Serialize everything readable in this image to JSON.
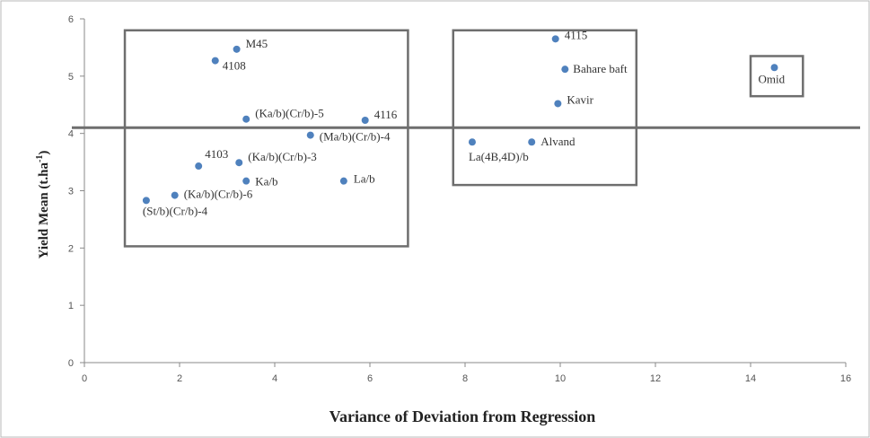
{
  "chart_data": {
    "type": "scatter",
    "xlabel": "Variance of Deviation from Regression",
    "ylabel_main": "Yield Mean (t.ha",
    "ylabel_sup": "-1",
    "ylabel_close": ")",
    "xlim": [
      0,
      16
    ],
    "ylim": [
      0,
      6
    ],
    "x_ticks": [
      "0",
      "2",
      "4",
      "6",
      "8",
      "10",
      "12",
      "14",
      "16"
    ],
    "y_ticks": [
      "0",
      "1",
      "2",
      "3",
      "4",
      "5",
      "6"
    ],
    "grid": false,
    "reference_line_y": 4.1,
    "points": [
      {
        "label": "M45",
        "x": 3.2,
        "y": 5.47
      },
      {
        "label": "4108",
        "x": 2.75,
        "y": 5.27
      },
      {
        "label": "(Ka/b)(Cr/b)-5",
        "x": 3.4,
        "y": 4.25
      },
      {
        "label": "4116",
        "x": 5.9,
        "y": 4.23
      },
      {
        "label": "(Ma/b)(Cr/b)-4",
        "x": 4.75,
        "y": 3.97
      },
      {
        "label": "4103",
        "x": 2.4,
        "y": 3.43
      },
      {
        "label": "(Ka/b)(Cr/b)-3",
        "x": 3.25,
        "y": 3.49
      },
      {
        "label": "Ka/b",
        "x": 3.4,
        "y": 3.17
      },
      {
        "label": "La/b",
        "x": 5.45,
        "y": 3.17
      },
      {
        "label": "(Ka/b)(Cr/b)-6",
        "x": 1.9,
        "y": 2.92
      },
      {
        "label": "(St/b)(Cr/b)-4",
        "x": 1.3,
        "y": 2.83
      },
      {
        "label": "4115",
        "x": 9.9,
        "y": 5.65
      },
      {
        "label": "Bahare baft",
        "x": 10.1,
        "y": 5.12
      },
      {
        "label": "Kavir",
        "x": 9.95,
        "y": 4.52
      },
      {
        "label": "Alvand",
        "x": 9.4,
        "y": 3.85
      },
      {
        "label": "La(4B,4D)/b",
        "x": 8.15,
        "y": 3.85
      },
      {
        "label": "Omid",
        "x": 14.5,
        "y": 5.15
      }
    ],
    "group_boxes": [
      {
        "x0": 0.85,
        "x1": 6.8,
        "y0": 2.03,
        "y1": 5.8
      },
      {
        "x0": 7.75,
        "x1": 11.6,
        "y0": 3.1,
        "y1": 5.8
      },
      {
        "x0": 14.0,
        "x1": 15.1,
        "y0": 4.65,
        "y1": 5.35
      }
    ],
    "colors": {
      "marker": "#4f81bd",
      "frame": "#6e6e6e",
      "axis": "#8a8a8a",
      "text": "#333333"
    }
  }
}
